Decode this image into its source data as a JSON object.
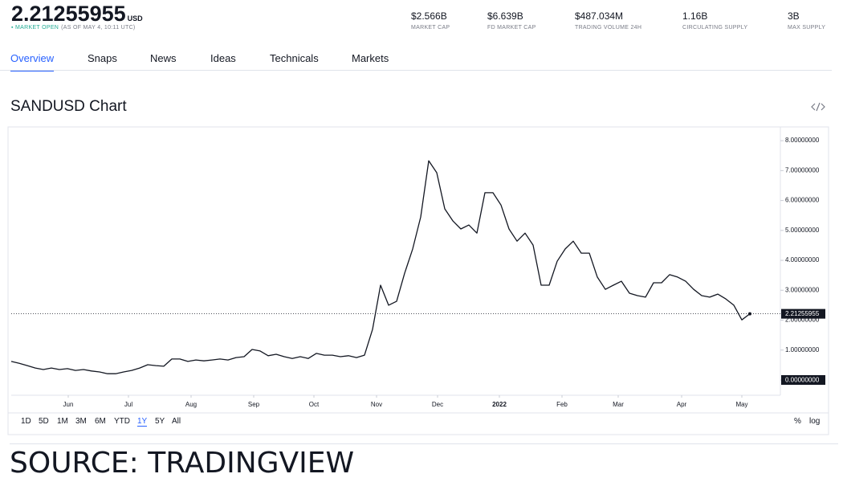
{
  "header": {
    "price": "2.21255955",
    "currency": "USD",
    "status": "MARKET OPEN",
    "as_of": "(AS OF MAY 4, 10:11 UTC)",
    "stats": [
      {
        "value": "$2.566B",
        "label": "MARKET CAP"
      },
      {
        "value": "$6.639B",
        "label": "FD MARKET CAP"
      },
      {
        "value": "$487.034M",
        "label": "TRADING VOLUME 24H"
      },
      {
        "value": "1.16B",
        "label": "CIRCULATING SUPPLY"
      },
      {
        "value": "3B",
        "label": "MAX SUPPLY"
      }
    ]
  },
  "tabs": [
    "Overview",
    "Snaps",
    "News",
    "Ideas",
    "Technicals",
    "Markets"
  ],
  "active_tab": 0,
  "ranges": [
    "1D",
    "5D",
    "1M",
    "3M",
    "6M",
    "YTD",
    "1Y",
    "5Y",
    "All"
  ],
  "active_range": 6,
  "scale_options": [
    "%",
    "log"
  ],
  "caption": "SOURCE: TRADINGVIEW",
  "chart_data": {
    "type": "line",
    "title": "SANDUSD Chart",
    "color": "#131722",
    "values": [
      0.62,
      0.56,
      0.48,
      0.4,
      0.35,
      0.4,
      0.35,
      0.38,
      0.32,
      0.35,
      0.3,
      0.27,
      0.21,
      0.21,
      0.27,
      0.32,
      0.4,
      0.51,
      0.48,
      0.46,
      0.7,
      0.7,
      0.62,
      0.67,
      0.64,
      0.67,
      0.7,
      0.67,
      0.75,
      0.78,
      1.02,
      0.97,
      0.81,
      0.86,
      0.78,
      0.72,
      0.78,
      0.72,
      0.89,
      0.83,
      0.83,
      0.78,
      0.81,
      0.75,
      0.83,
      1.69,
      3.17,
      2.5,
      2.63,
      3.57,
      4.38,
      5.45,
      7.33,
      6.93,
      5.72,
      5.32,
      5.05,
      5.18,
      4.91,
      6.26,
      6.26,
      5.85,
      5.05,
      4.64,
      4.91,
      4.51,
      3.17,
      3.17,
      3.97,
      4.38,
      4.64,
      4.24,
      4.24,
      3.44,
      3.03,
      3.17,
      3.3,
      2.9,
      2.82,
      2.77,
      3.25,
      3.25,
      3.52,
      3.44,
      3.3,
      3.03,
      2.82,
      2.77,
      2.87,
      2.71,
      2.5,
      2.01,
      2.21255955
    ],
    "xlim": [
      0,
      95.8
    ],
    "xticks": [
      {
        "value": 7.1,
        "label": "Jun"
      },
      {
        "value": 14.6,
        "label": "Jul"
      },
      {
        "value": 22.4,
        "label": "Aug"
      },
      {
        "value": 30.2,
        "label": "Sep"
      },
      {
        "value": 37.7,
        "label": "Oct"
      },
      {
        "value": 45.5,
        "label": "Nov"
      },
      {
        "value": 53.1,
        "label": "Dec"
      },
      {
        "value": 60.8,
        "label": "2022"
      },
      {
        "value": 68.6,
        "label": "Feb"
      },
      {
        "value": 75.6,
        "label": "Mar"
      },
      {
        "value": 83.5,
        "label": "Apr"
      },
      {
        "value": 91.0,
        "label": "May"
      }
    ],
    "ylim": [
      -0.51,
      8.46
    ],
    "yticks": [
      {
        "value": 0,
        "label": "0.00000000"
      },
      {
        "value": 1,
        "label": "1.00000000"
      },
      {
        "value": 2,
        "label": "2.00000000"
      },
      {
        "value": 3,
        "label": "3.00000000"
      },
      {
        "value": 4,
        "label": "4.00000000"
      },
      {
        "value": 5,
        "label": "5.00000000"
      },
      {
        "value": 6,
        "label": "6.00000000"
      },
      {
        "value": 7,
        "label": "7.00000000"
      },
      {
        "value": 8,
        "label": "8.00000000"
      }
    ],
    "grid": false
  }
}
